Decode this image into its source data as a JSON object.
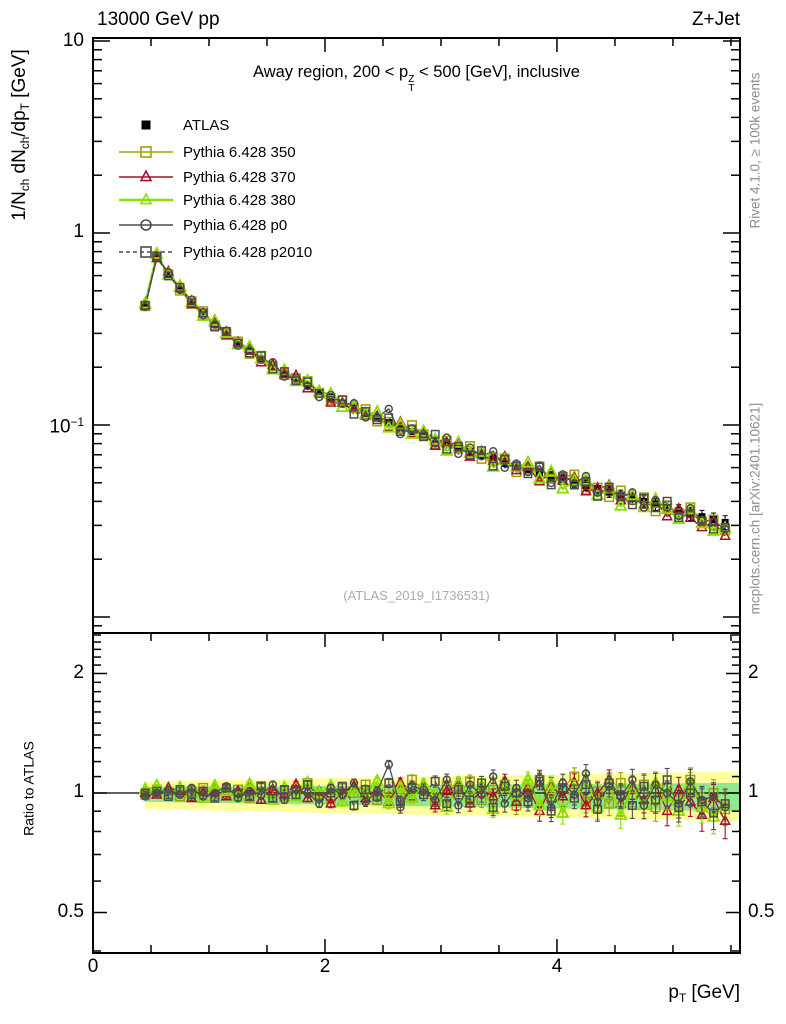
{
  "header": {
    "left": "13000 GeV pp",
    "right": "Z+Jet"
  },
  "panel_title": {
    "pre": "Away region, 200 < p",
    "sup": "Z",
    "sub": "T",
    "post": " < 500 [GeV], inclusive"
  },
  "watermark": "(ATLAS_2019_I1736531)",
  "sidebar": {
    "top": "Rivet 4.1.0, ≥ 100k events",
    "bottom": "mcplots.cern.ch [arXiv:2401.10621]"
  },
  "legend": {
    "atlas_label": "ATLAS"
  },
  "axes": {
    "y_label": {
      "p1": "1/N",
      "s1": "ch",
      "p2": " dN",
      "s2": "ch",
      "p3": "/dp",
      "s3": "T",
      "p4": " [GeV]"
    },
    "y_ticks": {
      "t10": "10",
      "t1": "1",
      "tm1_base": "10",
      "tm1_exp": "−1"
    },
    "ratio_label": "Ratio to ATLAS",
    "ratio_ticks": {
      "t2": "2",
      "t1": "1",
      "t05": "0.5"
    },
    "x_ticks": {
      "t0": "0",
      "t2": "2",
      "t4": "4"
    },
    "x_label": {
      "p": "p",
      "sub": "T",
      "post": " [GeV]"
    }
  },
  "chart_data": {
    "type": "scatter",
    "title": "Away region, 200 < pT(Z) < 500 [GeV], inclusive",
    "xlabel": "pT [GeV]",
    "ylabel": "1/Nch dNch/dpT [GeV]",
    "ratio_ylabel": "Ratio to ATLAS",
    "x_range": [
      0,
      5.578
    ],
    "y_scale": "log",
    "y_range": [
      0.00826,
      10.35
    ],
    "ratio_range": [
      0.395,
      2.53
    ],
    "x_ticks": [
      0,
      2,
      4
    ],
    "y_ticks": [
      10,
      1,
      0.1
    ],
    "ratio_ticks": [
      2,
      1,
      0.5
    ],
    "legend_position": "top-left",
    "grid": false,
    "pt": [
      0.45,
      0.55,
      0.65,
      0.75,
      0.85,
      0.95,
      1.05,
      1.15,
      1.25,
      1.35,
      1.45,
      1.55,
      1.65,
      1.75,
      1.85,
      1.95,
      2.05,
      2.15,
      2.25,
      2.35,
      2.45,
      2.55,
      2.65,
      2.75,
      2.85,
      2.95,
      3.05,
      3.15,
      3.25,
      3.35,
      3.45,
      3.55,
      3.65,
      3.75,
      3.85,
      3.95,
      4.05,
      4.15,
      4.25,
      4.35,
      4.45,
      4.55,
      4.65,
      4.75,
      4.85,
      4.95,
      5.05,
      5.15,
      5.25,
      5.35,
      5.45
    ],
    "atlas": [
      0.42,
      0.745,
      0.61,
      0.511,
      0.437,
      0.38,
      0.334,
      0.298,
      0.267,
      0.242,
      0.2205,
      0.202,
      0.186,
      0.172,
      0.1597,
      0.1487,
      0.139,
      0.1302,
      0.1224,
      0.1152,
      0.1087,
      0.1028,
      0.0974,
      0.0924,
      0.0878,
      0.0836,
      0.0796,
      0.076,
      0.0726,
      0.0694,
      0.0664,
      0.0637,
      0.0611,
      0.0587,
      0.0564,
      0.0542,
      0.0522,
      0.0502,
      0.0484,
      0.0467,
      0.0448,
      0.043,
      0.0413,
      0.04,
      0.0386,
      0.0371,
      0.0358,
      0.0345,
      0.0333,
      0.0322,
      0.0311
    ],
    "ratio_err": [
      0.01,
      0.01,
      0.011,
      0.011,
      0.012,
      0.012,
      0.013,
      0.013,
      0.014,
      0.015,
      0.016,
      0.017,
      0.018,
      0.019,
      0.02,
      0.021,
      0.022,
      0.023,
      0.024,
      0.025,
      0.027,
      0.028,
      0.03,
      0.031,
      0.033,
      0.034,
      0.036,
      0.038,
      0.04,
      0.041,
      0.043,
      0.045,
      0.047,
      0.049,
      0.051,
      0.053,
      0.055,
      0.057,
      0.059,
      0.061,
      0.063,
      0.065,
      0.067,
      0.069,
      0.071,
      0.073,
      0.075,
      0.077,
      0.079,
      0.081,
      0.083
    ],
    "series": [
      {
        "name": "Pythia 6.428 350",
        "color": "#a0a000",
        "marker": "open-square",
        "dash": null,
        "ratio": [
          0.99,
          1.02,
          1.0,
          0.98,
          1.01,
          1.03,
          0.99,
          1.0,
          1.02,
          0.97,
          1.04,
          1.0,
          0.98,
          1.02,
          1.06,
          0.99,
          0.97,
          1.03,
          1.0,
          1.05,
          0.96,
          1.01,
          0.98,
          1.08,
          1.02,
          0.95,
          1.04,
          0.99,
          1.07,
          0.96,
          1.02,
          1.05,
          0.93,
          1.0,
          1.08,
          0.97,
          1.03,
          1.1,
          0.95,
          1.01,
          0.94,
          1.06,
          0.99,
          1.05,
          0.92,
          1.03,
          0.97,
          1.08,
          0.94,
          1.0,
          0.91
        ]
      },
      {
        "name": "Pythia 6.428 370",
        "color": "#ae0c25",
        "marker": "open-triangle",
        "dash": null,
        "ratio": [
          1.0,
          0.99,
          1.03,
          1.01,
          0.97,
          1.0,
          1.02,
          0.98,
          1.01,
          1.03,
          0.96,
          1.02,
          0.99,
          1.05,
          0.97,
          1.01,
          0.94,
          1.0,
          1.04,
          0.97,
          1.02,
          0.95,
          1.06,
          0.98,
          1.03,
          0.93,
          1.01,
          1.05,
          0.94,
          1.02,
          0.98,
          1.07,
          0.95,
          1.03,
          0.9,
          1.04,
          0.98,
          1.06,
          0.93,
          1.0,
          1.08,
          0.94,
          1.03,
          0.96,
          1.05,
          0.9,
          1.02,
          0.95,
          0.88,
          0.97,
          0.85
        ]
      },
      {
        "name": "Pythia 6.428 380",
        "color": "#8ae000",
        "marker": "open-triangle",
        "dash": null,
        "ratio": [
          1.02,
          1.04,
          0.99,
          1.03,
          1.0,
          0.97,
          1.04,
          1.01,
          0.98,
          1.05,
          1.0,
          0.96,
          1.03,
          0.98,
          1.06,
          1.0,
          1.04,
          0.95,
          1.02,
          0.99,
          1.07,
          0.94,
          1.03,
          0.97,
          1.05,
          1.0,
          0.92,
          1.06,
          0.98,
          1.04,
          0.91,
          1.03,
          0.99,
          1.08,
          0.93,
          1.05,
          0.89,
          1.02,
          1.07,
          0.92,
          1.05,
          0.88,
          1.04,
          0.93,
          1.06,
          0.98,
          0.9,
          1.05,
          0.92,
          0.87,
          0.93
        ]
      },
      {
        "name": "Pythia 6.428 p0",
        "color": "#4d4d4d",
        "marker": "open-circle",
        "dash": null,
        "ratio": [
          0.98,
          1.0,
          1.02,
          0.99,
          1.03,
          0.98,
          1.0,
          1.04,
          0.97,
          1.01,
          0.99,
          1.05,
          0.96,
          1.02,
          1.0,
          0.94,
          1.03,
          0.99,
          1.06,
          0.95,
          1.01,
          1.18,
          0.92,
          1.04,
          1.02,
          0.96,
          1.08,
          0.93,
          1.05,
          0.99,
          1.1,
          0.94,
          1.03,
          0.97,
          1.09,
          0.92,
          1.06,
          0.99,
          1.12,
          0.95,
          1.04,
          0.98,
          1.08,
          0.93,
          1.05,
          1.0,
          0.94,
          1.07,
          0.96,
          0.98,
          0.92
        ]
      },
      {
        "name": "Pythia 6.428 p2010",
        "color": "#4d4d4d",
        "marker": "open-square",
        "dash": "4,3",
        "ratio": [
          1.0,
          1.01,
          0.98,
          1.02,
          0.99,
          1.01,
          0.97,
          1.03,
          1.0,
          0.98,
          1.04,
          0.97,
          1.02,
          0.99,
          1.05,
          0.98,
          1.0,
          1.04,
          0.93,
          1.02,
          0.98,
          1.06,
          0.95,
          1.03,
          0.99,
          1.07,
          0.94,
          1.02,
          0.96,
          1.06,
          0.92,
          1.04,
          1.0,
          0.95,
          1.07,
          0.9,
          1.03,
          0.97,
          1.05,
          0.91,
          1.06,
          0.99,
          0.93,
          1.04,
          0.96,
          1.08,
          0.92,
          1.0,
          0.95,
          0.89,
          0.94
        ]
      }
    ],
    "bands": {
      "yellow": {
        "color": "#ffff9e",
        "up_start": 0.07,
        "up_end": 0.13,
        "dn_start": 0.09,
        "dn_end": 0.15
      },
      "green": {
        "color": "#90e890",
        "up_start": 0.035,
        "up_end": 0.06,
        "dn_start": 0.05,
        "dn_end": 0.1
      }
    },
    "atlas_marker": "filled-square",
    "atlas_color": "#000000"
  }
}
